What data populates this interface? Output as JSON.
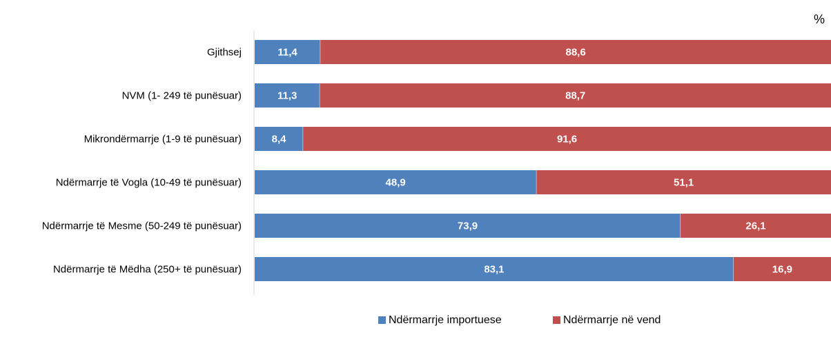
{
  "chart_data": {
    "type": "bar",
    "orientation": "horizontal",
    "stacked": true,
    "unit_label": "%",
    "categories": [
      "Gjithsej",
      "NVM  (1- 249 të punësuar)",
      "Mikrondërmarrje (1-9 të punësuar)",
      "Ndërmarrje të Vogla (10-49 të punësuar)",
      "Ndërmarrje të Mesme (50-249 të punësuar)",
      "Ndërmarrje të Mëdha (250+ të punësuar)"
    ],
    "series": [
      {
        "name": "Ndërmarrje importuese",
        "color": "#4F81BD",
        "values": [
          11.4,
          11.3,
          8.4,
          48.9,
          73.9,
          83.1
        ],
        "labels": [
          "11,4",
          "11,3",
          "8,4",
          "48,9",
          "73,9",
          "83,1"
        ]
      },
      {
        "name": "Ndërmarrje në vend",
        "color": "#C0504D",
        "values": [
          88.6,
          88.7,
          91.6,
          51.1,
          26.1,
          16.9
        ],
        "labels": [
          "88,6",
          "88,7",
          "91,6",
          "51,1",
          "26,1",
          "16,9"
        ]
      }
    ],
    "xlim": [
      0,
      100
    ],
    "grid": false,
    "legend_position": "bottom"
  }
}
